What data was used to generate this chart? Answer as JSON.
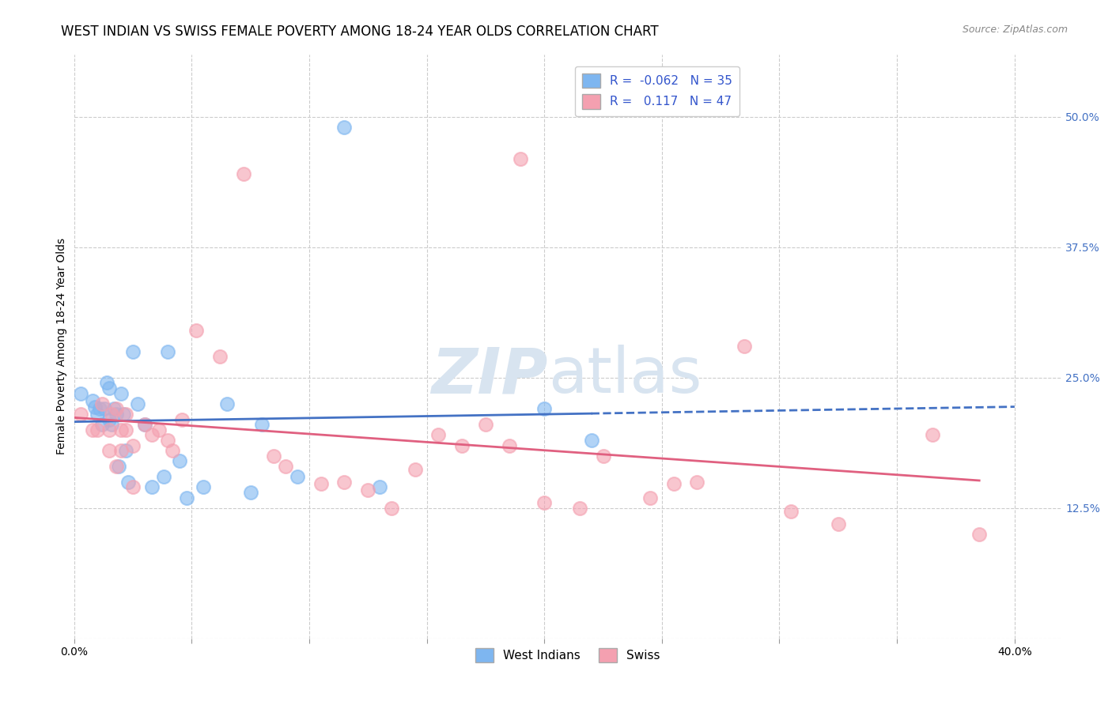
{
  "title": "WEST INDIAN VS SWISS FEMALE POVERTY AMONG 18-24 YEAR OLDS CORRELATION CHART",
  "source": "Source: ZipAtlas.com",
  "ylabel": "Female Poverty Among 18-24 Year Olds",
  "xlim": [
    0.0,
    0.42
  ],
  "ylim": [
    0.0,
    0.56
  ],
  "xtick_positions": [
    0.0,
    0.05,
    0.1,
    0.15,
    0.2,
    0.25,
    0.3,
    0.35,
    0.4
  ],
  "xtick_labels": [
    "0.0%",
    "",
    "",
    "",
    "",
    "",
    "",
    "",
    "40.0%"
  ],
  "ytick_positions": [
    0.0,
    0.125,
    0.25,
    0.375,
    0.5
  ],
  "ytick_labels_right": [
    "",
    "12.5%",
    "25.0%",
    "37.5%",
    "50.0%"
  ],
  "west_indian_color": "#7EB6F0",
  "swiss_color": "#F4A0B0",
  "west_indian_line_color": "#4472C4",
  "swiss_line_color": "#E06080",
  "west_indian_R": -0.062,
  "west_indian_N": 35,
  "swiss_R": 0.117,
  "swiss_N": 47,
  "west_indian_x": [
    0.003,
    0.008,
    0.009,
    0.01,
    0.011,
    0.012,
    0.013,
    0.014,
    0.015,
    0.015,
    0.016,
    0.017,
    0.018,
    0.019,
    0.02,
    0.021,
    0.022,
    0.023,
    0.025,
    0.027,
    0.03,
    0.033,
    0.038,
    0.04,
    0.045,
    0.055,
    0.065,
    0.08,
    0.095,
    0.115,
    0.13,
    0.2,
    0.22,
    0.048,
    0.075
  ],
  "west_indian_y": [
    0.235,
    0.228,
    0.222,
    0.215,
    0.22,
    0.205,
    0.22,
    0.245,
    0.24,
    0.21,
    0.205,
    0.22,
    0.215,
    0.165,
    0.235,
    0.215,
    0.18,
    0.15,
    0.275,
    0.225,
    0.205,
    0.145,
    0.155,
    0.275,
    0.17,
    0.145,
    0.225,
    0.205,
    0.155,
    0.49,
    0.145,
    0.22,
    0.19,
    0.135,
    0.14
  ],
  "swiss_x": [
    0.003,
    0.008,
    0.01,
    0.012,
    0.015,
    0.015,
    0.016,
    0.018,
    0.018,
    0.02,
    0.02,
    0.022,
    0.022,
    0.025,
    0.025,
    0.03,
    0.033,
    0.036,
    0.04,
    0.042,
    0.046,
    0.052,
    0.062,
    0.072,
    0.085,
    0.09,
    0.105,
    0.115,
    0.125,
    0.135,
    0.145,
    0.155,
    0.165,
    0.175,
    0.185,
    0.19,
    0.2,
    0.215,
    0.225,
    0.245,
    0.255,
    0.265,
    0.285,
    0.305,
    0.325,
    0.365,
    0.385
  ],
  "swiss_y": [
    0.215,
    0.2,
    0.2,
    0.225,
    0.2,
    0.18,
    0.215,
    0.165,
    0.22,
    0.2,
    0.18,
    0.215,
    0.2,
    0.185,
    0.145,
    0.205,
    0.195,
    0.2,
    0.19,
    0.18,
    0.21,
    0.295,
    0.27,
    0.445,
    0.175,
    0.165,
    0.148,
    0.15,
    0.142,
    0.125,
    0.162,
    0.195,
    0.185,
    0.205,
    0.185,
    0.46,
    0.13,
    0.125,
    0.175,
    0.135,
    0.148,
    0.15,
    0.28,
    0.122,
    0.11,
    0.195,
    0.1
  ],
  "background_color": "#ffffff",
  "grid_color": "#cccccc",
  "title_fontsize": 12,
  "label_fontsize": 10,
  "tick_fontsize": 10,
  "watermark_zip": "ZIP",
  "watermark_atlas": "atlas",
  "watermark_color": "#d8e4f0"
}
